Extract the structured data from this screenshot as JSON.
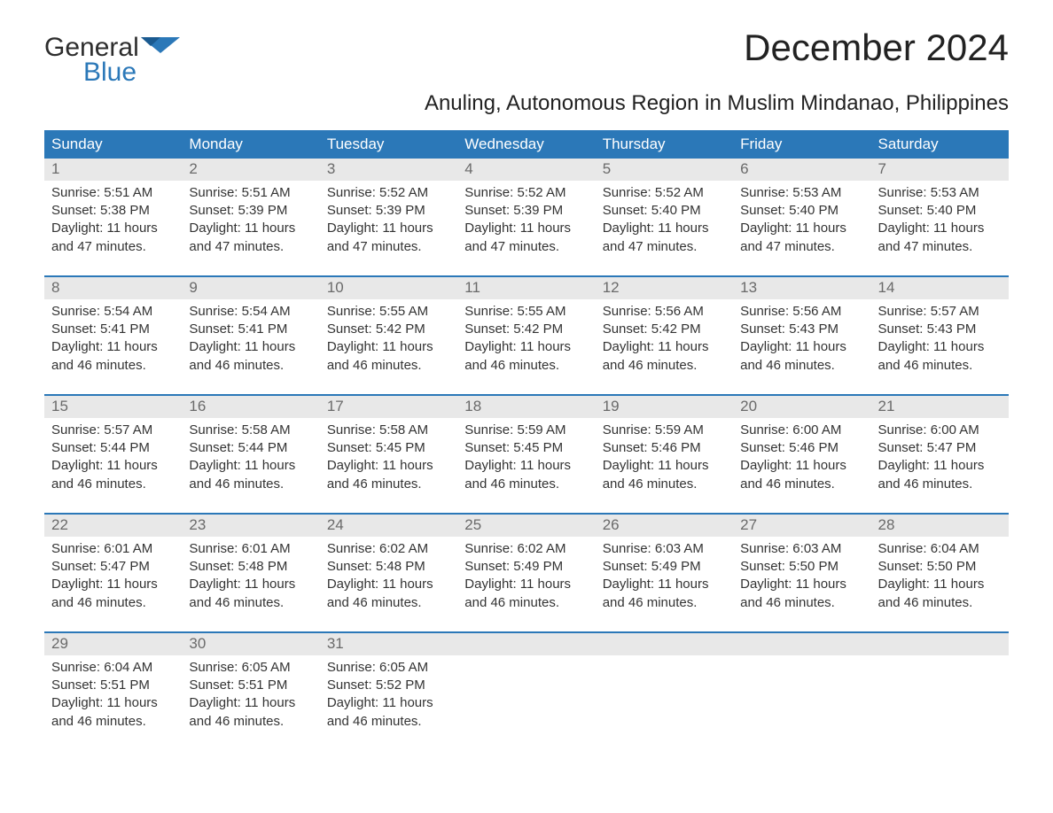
{
  "logo": {
    "text_top": "General",
    "text_bottom": "Blue"
  },
  "title": "December 2024",
  "subtitle": "Anuling, Autonomous Region in Muslim Mindanao, Philippines",
  "colors": {
    "header_bg": "#2b78b8",
    "header_text": "#ffffff",
    "daynum_bg": "#e8e8e8",
    "daynum_text": "#6a6a6a",
    "body_text": "#333333",
    "week_border": "#2b78b8",
    "page_bg": "#ffffff"
  },
  "weekday_labels": [
    "Sunday",
    "Monday",
    "Tuesday",
    "Wednesday",
    "Thursday",
    "Friday",
    "Saturday"
  ],
  "layout": {
    "columns": 7,
    "rows": 5,
    "first_day_column": 0,
    "days_in_month": 31
  },
  "days": [
    {
      "n": 1,
      "sunrise": "5:51 AM",
      "sunset": "5:38 PM",
      "daylight": "11 hours and 47 minutes."
    },
    {
      "n": 2,
      "sunrise": "5:51 AM",
      "sunset": "5:39 PM",
      "daylight": "11 hours and 47 minutes."
    },
    {
      "n": 3,
      "sunrise": "5:52 AM",
      "sunset": "5:39 PM",
      "daylight": "11 hours and 47 minutes."
    },
    {
      "n": 4,
      "sunrise": "5:52 AM",
      "sunset": "5:39 PM",
      "daylight": "11 hours and 47 minutes."
    },
    {
      "n": 5,
      "sunrise": "5:52 AM",
      "sunset": "5:40 PM",
      "daylight": "11 hours and 47 minutes."
    },
    {
      "n": 6,
      "sunrise": "5:53 AM",
      "sunset": "5:40 PM",
      "daylight": "11 hours and 47 minutes."
    },
    {
      "n": 7,
      "sunrise": "5:53 AM",
      "sunset": "5:40 PM",
      "daylight": "11 hours and 47 minutes."
    },
    {
      "n": 8,
      "sunrise": "5:54 AM",
      "sunset": "5:41 PM",
      "daylight": "11 hours and 46 minutes."
    },
    {
      "n": 9,
      "sunrise": "5:54 AM",
      "sunset": "5:41 PM",
      "daylight": "11 hours and 46 minutes."
    },
    {
      "n": 10,
      "sunrise": "5:55 AM",
      "sunset": "5:42 PM",
      "daylight": "11 hours and 46 minutes."
    },
    {
      "n": 11,
      "sunrise": "5:55 AM",
      "sunset": "5:42 PM",
      "daylight": "11 hours and 46 minutes."
    },
    {
      "n": 12,
      "sunrise": "5:56 AM",
      "sunset": "5:42 PM",
      "daylight": "11 hours and 46 minutes."
    },
    {
      "n": 13,
      "sunrise": "5:56 AM",
      "sunset": "5:43 PM",
      "daylight": "11 hours and 46 minutes."
    },
    {
      "n": 14,
      "sunrise": "5:57 AM",
      "sunset": "5:43 PM",
      "daylight": "11 hours and 46 minutes."
    },
    {
      "n": 15,
      "sunrise": "5:57 AM",
      "sunset": "5:44 PM",
      "daylight": "11 hours and 46 minutes."
    },
    {
      "n": 16,
      "sunrise": "5:58 AM",
      "sunset": "5:44 PM",
      "daylight": "11 hours and 46 minutes."
    },
    {
      "n": 17,
      "sunrise": "5:58 AM",
      "sunset": "5:45 PM",
      "daylight": "11 hours and 46 minutes."
    },
    {
      "n": 18,
      "sunrise": "5:59 AM",
      "sunset": "5:45 PM",
      "daylight": "11 hours and 46 minutes."
    },
    {
      "n": 19,
      "sunrise": "5:59 AM",
      "sunset": "5:46 PM",
      "daylight": "11 hours and 46 minutes."
    },
    {
      "n": 20,
      "sunrise": "6:00 AM",
      "sunset": "5:46 PM",
      "daylight": "11 hours and 46 minutes."
    },
    {
      "n": 21,
      "sunrise": "6:00 AM",
      "sunset": "5:47 PM",
      "daylight": "11 hours and 46 minutes."
    },
    {
      "n": 22,
      "sunrise": "6:01 AM",
      "sunset": "5:47 PM",
      "daylight": "11 hours and 46 minutes."
    },
    {
      "n": 23,
      "sunrise": "6:01 AM",
      "sunset": "5:48 PM",
      "daylight": "11 hours and 46 minutes."
    },
    {
      "n": 24,
      "sunrise": "6:02 AM",
      "sunset": "5:48 PM",
      "daylight": "11 hours and 46 minutes."
    },
    {
      "n": 25,
      "sunrise": "6:02 AM",
      "sunset": "5:49 PM",
      "daylight": "11 hours and 46 minutes."
    },
    {
      "n": 26,
      "sunrise": "6:03 AM",
      "sunset": "5:49 PM",
      "daylight": "11 hours and 46 minutes."
    },
    {
      "n": 27,
      "sunrise": "6:03 AM",
      "sunset": "5:50 PM",
      "daylight": "11 hours and 46 minutes."
    },
    {
      "n": 28,
      "sunrise": "6:04 AM",
      "sunset": "5:50 PM",
      "daylight": "11 hours and 46 minutes."
    },
    {
      "n": 29,
      "sunrise": "6:04 AM",
      "sunset": "5:51 PM",
      "daylight": "11 hours and 46 minutes."
    },
    {
      "n": 30,
      "sunrise": "6:05 AM",
      "sunset": "5:51 PM",
      "daylight": "11 hours and 46 minutes."
    },
    {
      "n": 31,
      "sunrise": "6:05 AM",
      "sunset": "5:52 PM",
      "daylight": "11 hours and 46 minutes."
    }
  ],
  "line_labels": {
    "sunrise_prefix": "Sunrise: ",
    "sunset_prefix": "Sunset: ",
    "daylight_prefix": "Daylight: "
  }
}
